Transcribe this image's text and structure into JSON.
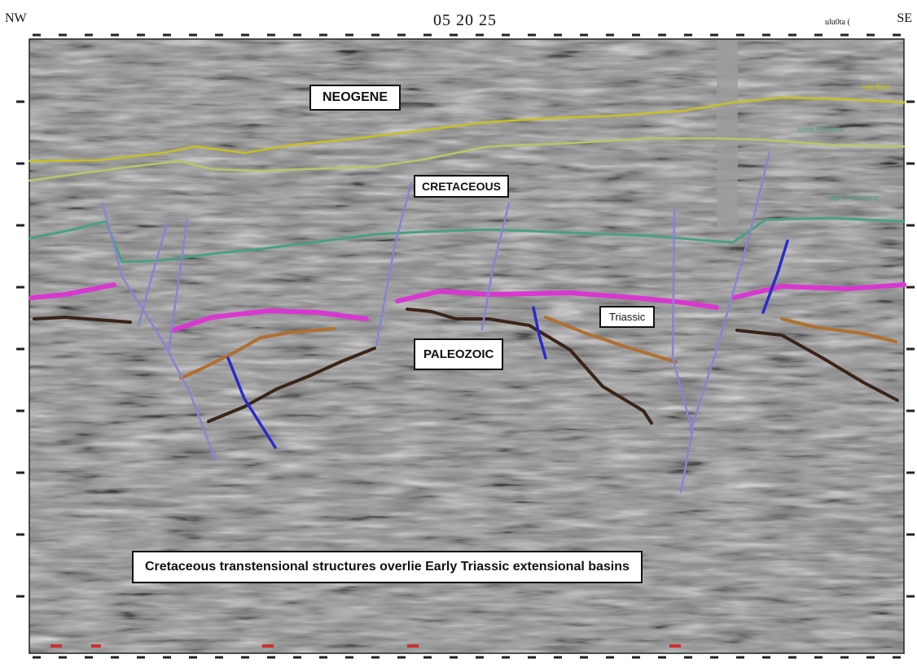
{
  "header": {
    "left_direction": "NW",
    "right_direction": "SE",
    "line_id": "05 20 25",
    "scale_note": "ulu0ta (",
    "horizon_tags": [
      "sea floor",
      "base Pliocene",
      "top Cretaceous"
    ]
  },
  "labels": {
    "neogene": "NEOGENE",
    "cretaceous": "CRETACEOUS",
    "triassic": "Triassic",
    "paleozoic": "PALEOZOIC",
    "caption": "Cretaceous transtensional structures overlie Early Triassic extensional basins"
  },
  "colors": {
    "seismic_background": "#8c8c8c",
    "neogene_horizon_yellow": "#c8c020",
    "neogene_horizon_pale": "#bcc466",
    "cretaceous_horizon_green": "#4aa080",
    "triassic_horizon_magenta": "#d838d0",
    "permian_horizon_brown": "#b07030",
    "paleozoic_horizon_dark": "#3a2418",
    "major_fault_lavender": "#8a82d4",
    "minor_fault_blue": "#2a2acc",
    "shot_marker_red": "#cc3030"
  }
}
